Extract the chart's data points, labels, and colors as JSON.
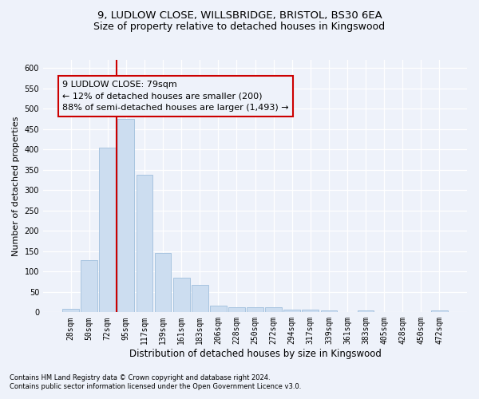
{
  "title_line1": "9, LUDLOW CLOSE, WILLSBRIDGE, BRISTOL, BS30 6EA",
  "title_line2": "Size of property relative to detached houses in Kingswood",
  "xlabel": "Distribution of detached houses by size in Kingswood",
  "ylabel": "Number of detached properties",
  "bar_color": "#ccddf0",
  "bar_edge_color": "#a8c4e0",
  "vline_color": "#cc0000",
  "categories": [
    "28sqm",
    "50sqm",
    "72sqm",
    "95sqm",
    "117sqm",
    "139sqm",
    "161sqm",
    "183sqm",
    "206sqm",
    "228sqm",
    "250sqm",
    "272sqm",
    "294sqm",
    "317sqm",
    "339sqm",
    "361sqm",
    "383sqm",
    "405sqm",
    "428sqm",
    "450sqm",
    "472sqm"
  ],
  "values": [
    8,
    128,
    405,
    475,
    338,
    145,
    85,
    68,
    17,
    12,
    13,
    13,
    7,
    6,
    4,
    1,
    4,
    0,
    0,
    0,
    4
  ],
  "vline_pos": 2.5,
  "ylim": [
    0,
    620
  ],
  "yticks": [
    0,
    50,
    100,
    150,
    200,
    250,
    300,
    350,
    400,
    450,
    500,
    550,
    600
  ],
  "annotation_text_line1": "9 LUDLOW CLOSE: 79sqm",
  "annotation_text_line2": "← 12% of detached houses are smaller (200)",
  "annotation_text_line3": "88% of semi-detached houses are larger (1,493) →",
  "footnote1": "Contains HM Land Registry data © Crown copyright and database right 2024.",
  "footnote2": "Contains public sector information licensed under the Open Government Licence v3.0.",
  "background_color": "#eef2fa",
  "grid_color": "#ffffff",
  "title_fontsize": 9.5,
  "subtitle_fontsize": 9,
  "tick_fontsize": 7,
  "ylabel_fontsize": 8,
  "xlabel_fontsize": 8.5,
  "annotation_fontsize": 8,
  "footnote_fontsize": 6
}
